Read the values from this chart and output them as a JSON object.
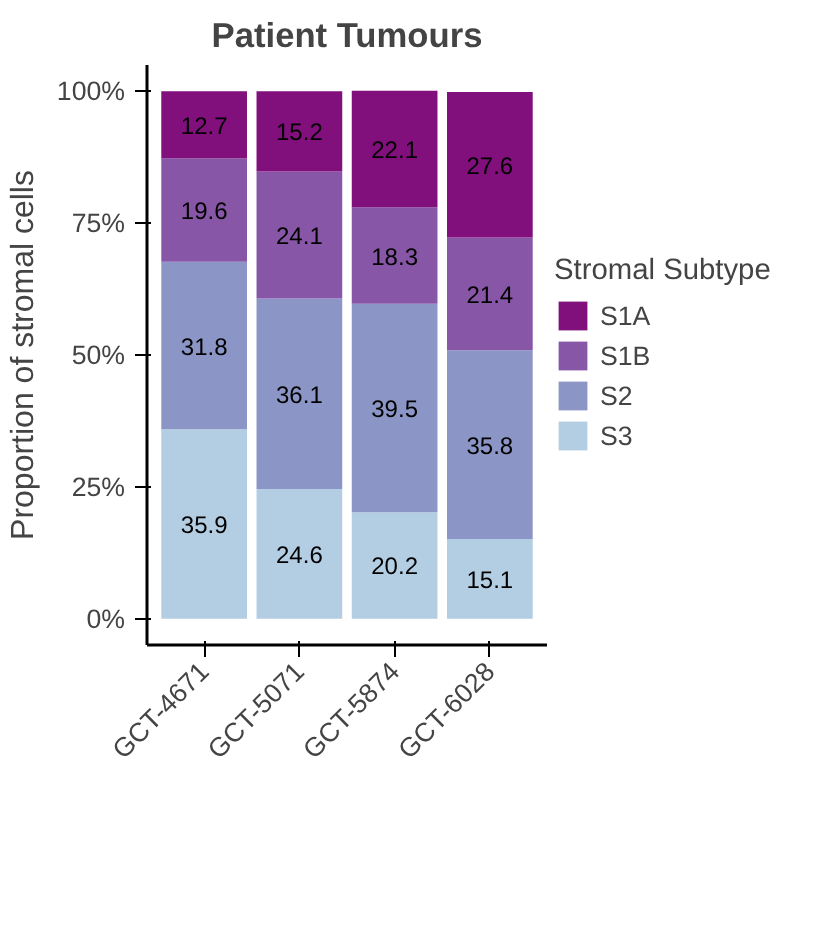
{
  "chart_data": {
    "type": "bar",
    "title": "Patient Tumours",
    "ylabel": "Proportion of stromal cells",
    "legend_title": "Stromal Subtype",
    "categories": [
      "GCT-4671",
      "GCT-5071",
      "GCT-5874",
      "GCT-6028"
    ],
    "stacked": true,
    "data_labels": true,
    "legend": "right",
    "grid": false,
    "series": [
      {
        "name": "S3",
        "color": "#b3cde3",
        "values": [
          35.9,
          24.6,
          20.2,
          15.1
        ]
      },
      {
        "name": "S2",
        "color": "#8c96c6",
        "values": [
          31.8,
          36.1,
          39.5,
          35.8
        ]
      },
      {
        "name": "S1B",
        "color": "#8856a7",
        "values": [
          19.6,
          24.1,
          18.3,
          21.4
        ]
      },
      {
        "name": "S1A",
        "color": "#810f7c",
        "values": [
          12.7,
          15.2,
          22.1,
          27.6
        ]
      }
    ],
    "ylim": [
      -5,
      105
    ],
    "yticks": [
      {
        "value": 0,
        "label": "0%"
      },
      {
        "value": 25,
        "label": "25%"
      },
      {
        "value": 50,
        "label": "50%"
      },
      {
        "value": 75,
        "label": "75%"
      },
      {
        "value": 100,
        "label": "100%"
      }
    ]
  }
}
